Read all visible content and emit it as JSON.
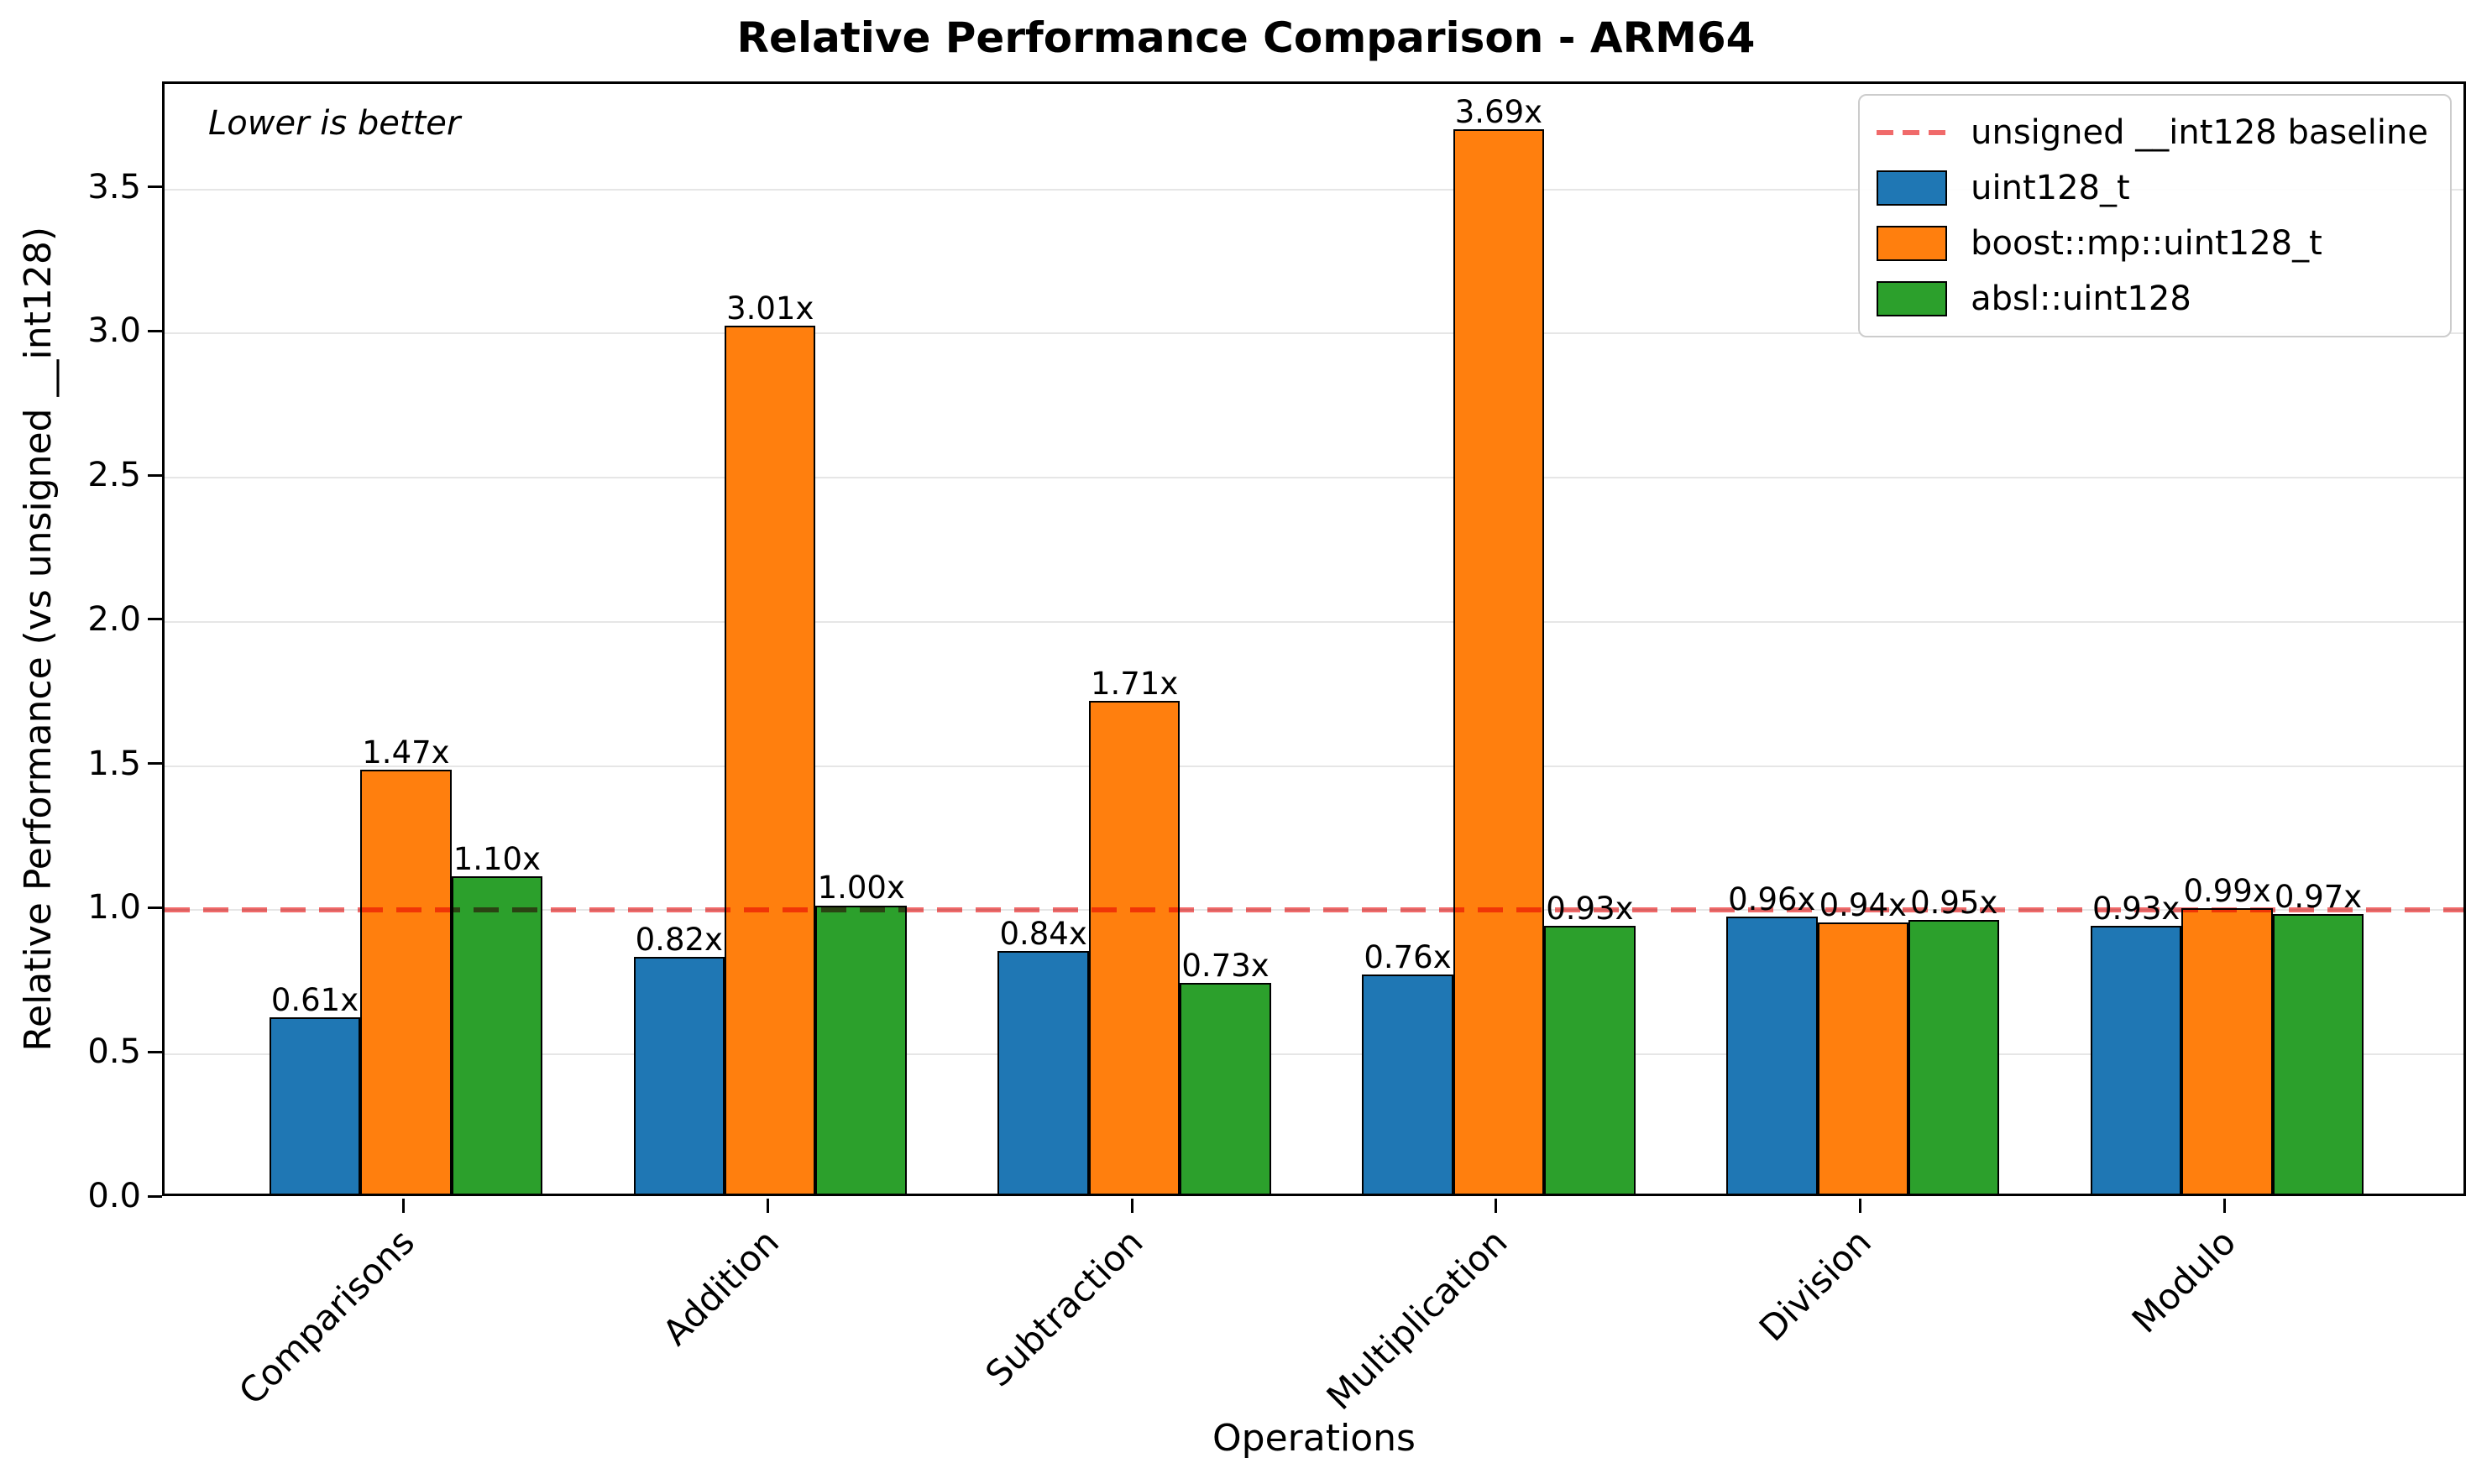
{
  "chart_data": {
    "type": "bar",
    "title": "Relative Performance Comparison - ARM64",
    "xlabel": "Operations",
    "ylabel": "Relative Performance (vs unsigned __int128)",
    "annotation": "Lower is better",
    "categories": [
      "Comparisons",
      "Addition",
      "Subtraction",
      "Multiplication",
      "Division",
      "Modulo"
    ],
    "series": [
      {
        "name": "uint128_t",
        "color": "#1f77b4",
        "values": [
          0.61,
          0.82,
          0.84,
          0.76,
          0.96,
          0.93
        ]
      },
      {
        "name": "boost::mp::uint128_t",
        "color": "#ff7f0e",
        "values": [
          1.47,
          3.01,
          1.71,
          3.69,
          0.94,
          0.99
        ]
      },
      {
        "name": "absl::uint128",
        "color": "#2ca02c",
        "values": [
          1.1,
          1.0,
          0.73,
          0.93,
          0.95,
          0.97
        ]
      }
    ],
    "baseline": {
      "label": "unsigned __int128 baseline",
      "value": 1.0,
      "color": "#f06a6a"
    },
    "value_label_suffix": "x",
    "yticks": [
      0.0,
      0.5,
      1.0,
      1.5,
      2.0,
      2.5,
      3.0,
      3.5
    ],
    "ylim": [
      0,
      3.866
    ],
    "grid": true,
    "grid_color": "#e6e6e6",
    "legend_position": "upper right"
  }
}
